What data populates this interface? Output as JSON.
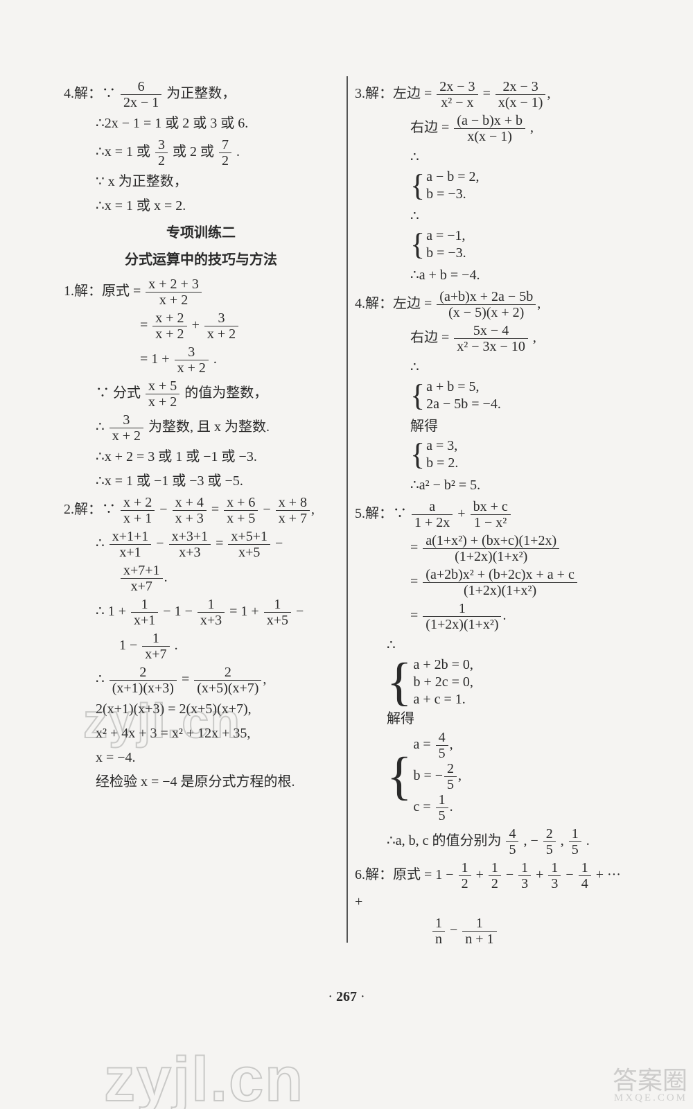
{
  "page_number": "267",
  "watermarks": {
    "wm1": "zyjl.cn",
    "wm2": "zyjl.cn"
  },
  "corner": {
    "big": "答案圈",
    "small": "MXQE.COM"
  },
  "section_title_1": "专项训练二",
  "section_title_2": "分式运算中的技巧与方法",
  "left": {
    "q4": {
      "label": "4.解：∵ ",
      "tail": " 为正整数，",
      "l2": "∴2x − 1 = 1 或 2 或 3 或 6.",
      "l3a": "∴x = 1 或 ",
      "l3b": " 或 2 或 ",
      "l3c": ".",
      "l4": "∵ x 为正整数，",
      "l5": "∴x = 1 或 x = 2."
    },
    "q1": {
      "label": "1.解：原式 = ",
      "l2a": "= ",
      "l2b": " + ",
      "l3a": "= 1 + ",
      "l3b": ".",
      "l4a": "∵ 分式 ",
      "l4b": " 的值为整数，",
      "l5a": "∴ ",
      "l5b": " 为整数, 且 x 为整数.",
      "l6": "∴x + 2 = 3 或 1 或 −1 或 −3.",
      "l7": "∴x = 1 或 −1 或 −3 或 −5."
    },
    "q2": {
      "label": "2.解：∵ ",
      "l2a": "∴ ",
      "l4a": "∴ 1 + ",
      "l4b": " − 1 − ",
      "l4c": " = 1 + ",
      "l4d": " −",
      "l5a": "1 − ",
      "l5b": ".",
      "l6a": "∴ ",
      "l7": "2(x+1)(x+3) = 2(x+5)(x+7),",
      "l8": "x² + 4x + 3 = x² + 12x + 35,",
      "l9": "x = −4.",
      "l10": "经检验 x = −4 是原分式方程的根."
    }
  },
  "right": {
    "q3": {
      "label": "3.解：左边 = ",
      "l2a": "右边 = ",
      "l2b": ",",
      "s1a": "a − b = 2,",
      "s1b": "b = −3.",
      "s2a": "a = −1,",
      "s2b": "b = −3.",
      "l5": "∴a + b = −4."
    },
    "q4": {
      "label": "4.解：左边 = ",
      "l2a": "右边 = ",
      "l2b": ",",
      "s1a": "a + b = 5,",
      "s1b": "2a − 5b = −4.",
      "s2pre": "解得",
      "s2a": "a = 3,",
      "s2b": "b = 2.",
      "l5": "∴a² − b² = 5."
    },
    "q5": {
      "label": "5.解：∵  ",
      "sys_pre": "∴",
      "sA1": "a + 2b = 0,",
      "sA2": "b + 2c = 0,",
      "sA3": "a + c = 1.",
      "mid": " 解得",
      "concl_a": "∴a, b, c 的值分别为 ",
      "concl_b": ", −",
      "concl_c": ", ",
      "concl_d": "."
    },
    "q6": {
      "label": "6.解：原式 = 1 − ",
      "p1": " + ",
      "p2": " − ",
      "p3": " + ",
      "p4": " − ",
      "p5": " + ··· +"
    }
  },
  "colors": {
    "text": "#2a2a2a",
    "bg": "#f5f4f2",
    "rule": "#555",
    "wm": "rgba(120,120,120,0.35)"
  }
}
